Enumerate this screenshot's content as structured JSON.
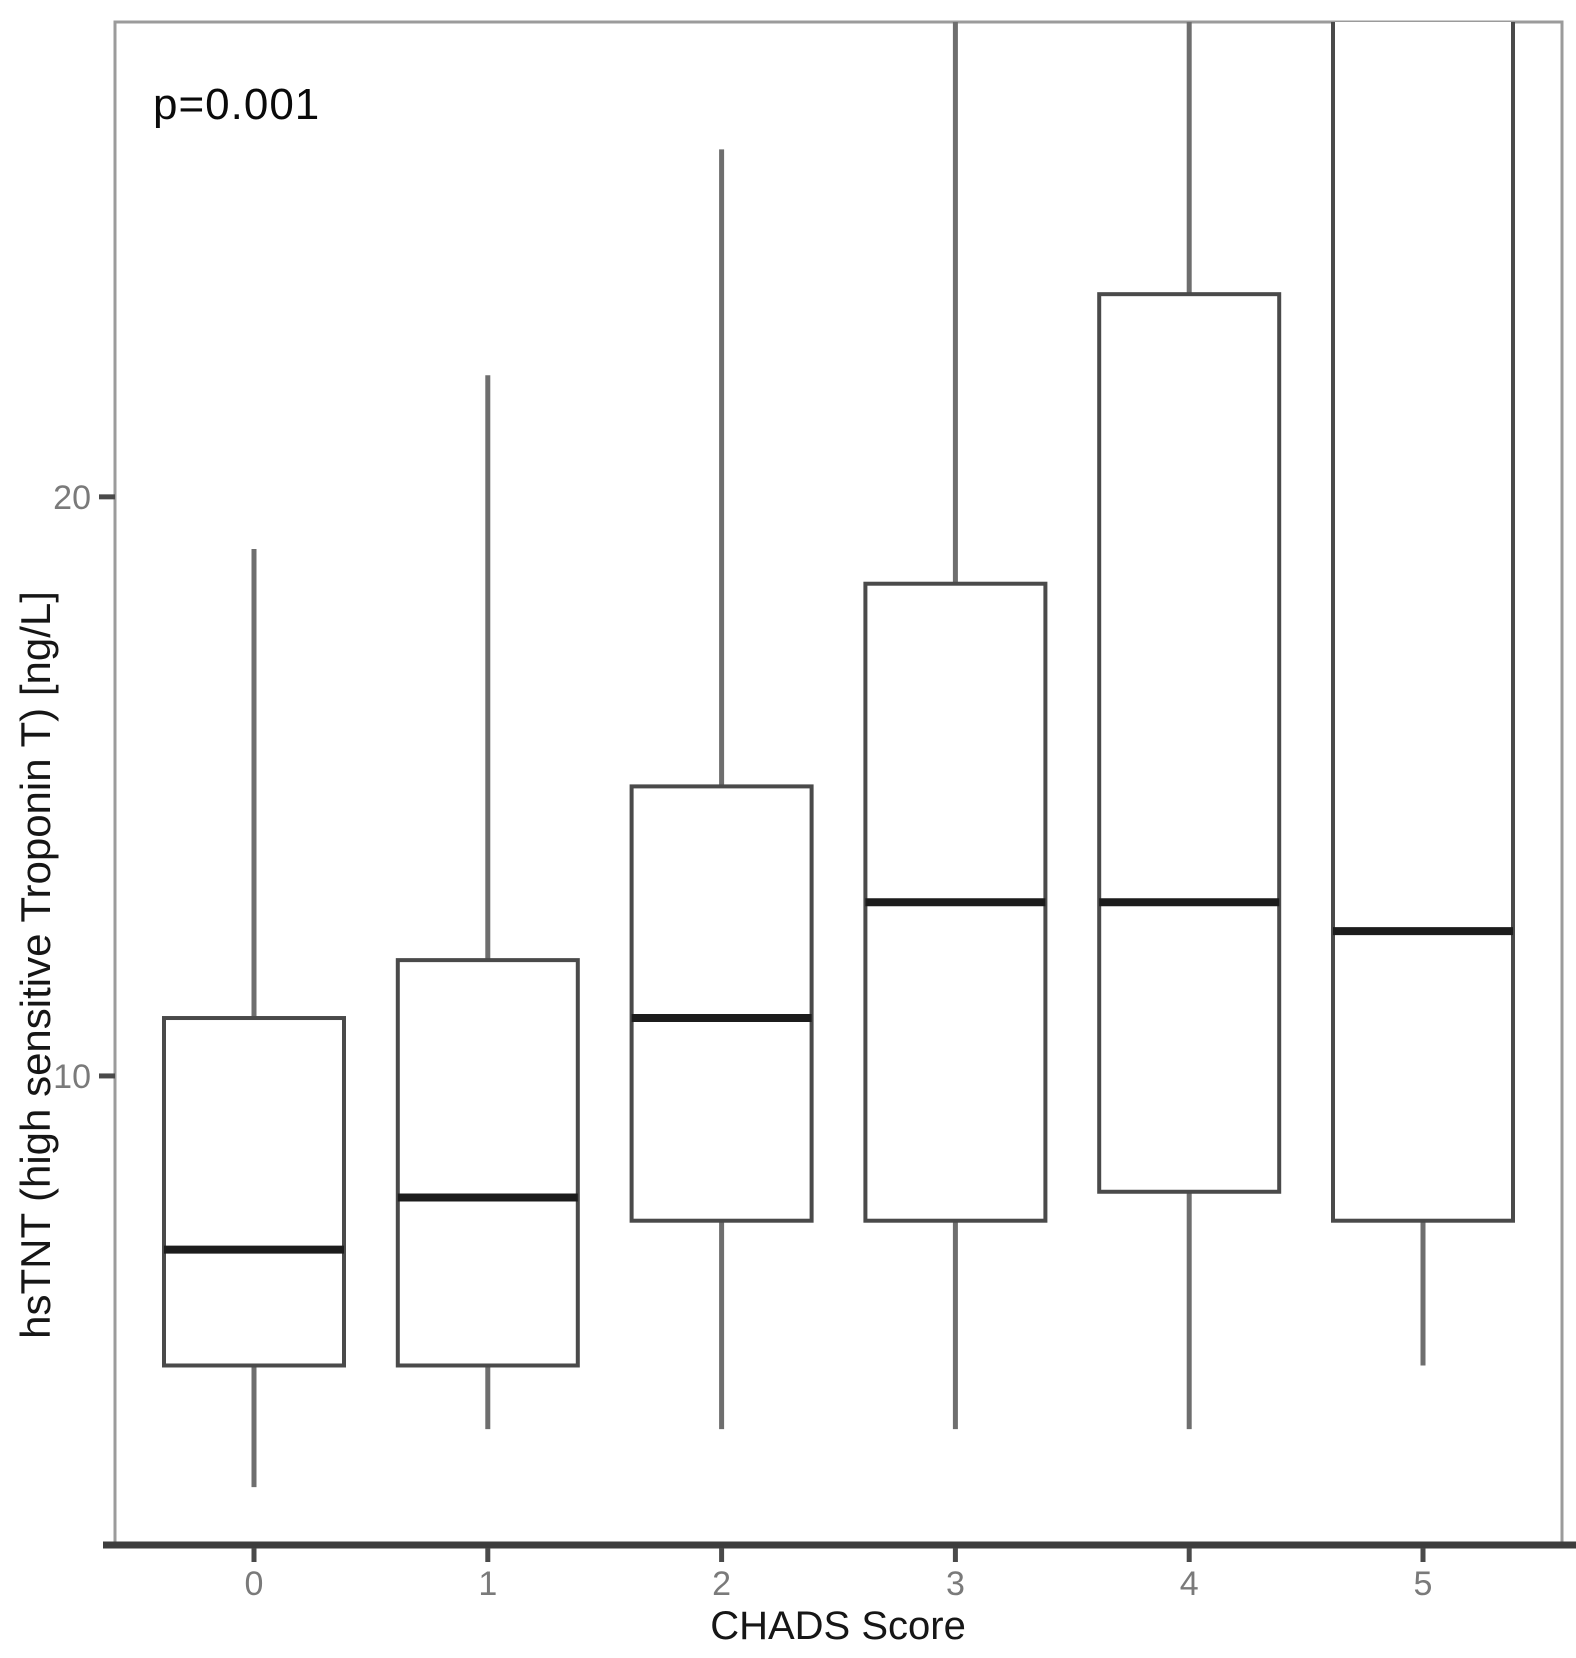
{
  "chart_data": {
    "type": "boxplot",
    "title": "",
    "xlabel": "CHADS Score",
    "ylabel": "hsTNT (high sensitive Troponin T) [ng/L]",
    "annotation": "p=0.001",
    "categories": [
      "0",
      "1",
      "2",
      "3",
      "4",
      "5"
    ],
    "y_ticks": [
      {
        "value": 10,
        "label": "10"
      },
      {
        "value": 20,
        "label": "20"
      }
    ],
    "ylim": [
      1.9,
      28.2
    ],
    "grid": false,
    "legend_position": "none",
    "boxes": [
      {
        "category": "0",
        "whisker_low": 2.9,
        "q1": 5.0,
        "median": 7.0,
        "q3": 11.0,
        "whisker_high": 19.1,
        "clipped_top": false
      },
      {
        "category": "1",
        "whisker_low": 3.9,
        "q1": 5.0,
        "median": 7.9,
        "q3": 12.0,
        "whisker_high": 22.1,
        "clipped_top": false
      },
      {
        "category": "2",
        "whisker_low": 3.9,
        "q1": 7.5,
        "median": 11.0,
        "q3": 15.0,
        "whisker_high": 26.0,
        "clipped_top": false
      },
      {
        "category": "3",
        "whisker_low": 3.9,
        "q1": 7.5,
        "median": 13.0,
        "q3": 18.5,
        "whisker_high": null,
        "clipped_top": true
      },
      {
        "category": "4",
        "whisker_low": 3.9,
        "q1": 8.0,
        "median": 13.0,
        "q3": 23.5,
        "whisker_high": null,
        "clipped_top": true
      },
      {
        "category": "5",
        "whisker_low": 5.0,
        "q1": 7.5,
        "median": 12.5,
        "q3": null,
        "whisker_high": null,
        "clipped_top": true
      }
    ],
    "notes": "Whiskers drawn without end caps; upper whiskers of categories 3 and 4 and the upper box edge of category 5 are clipped at the top of the plot panel.",
    "colors": {
      "background": "#ffffff",
      "box_fill": "#ffffff",
      "box_stroke": "#4a4a4a",
      "median": "#1c1c1c",
      "whisker": "#6e6e6e",
      "axis_line": "#3d3d3d",
      "tick": "#4a4a4a",
      "tick_label": "#7a7a7a",
      "axis_title": "#161616",
      "annotation_color": "#0a0a0a",
      "panel_border": "#9b9b9b"
    }
  }
}
